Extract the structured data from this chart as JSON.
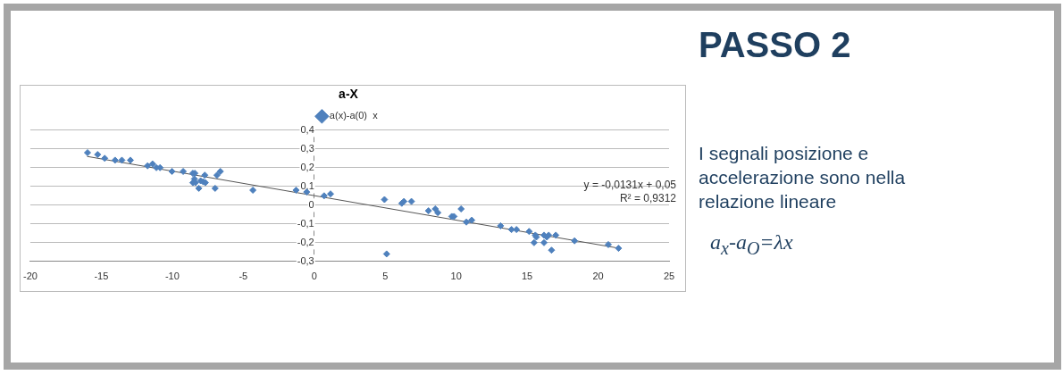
{
  "chart_data": {
    "type": "scatter",
    "title": "a-X",
    "series": [
      {
        "name": "a(x)-a(0)  x",
        "color": "#4f81bd",
        "marker": "diamond",
        "x": [
          -15.97,
          -15.26,
          -14.76,
          -14.03,
          -13.55,
          -12.95,
          -11.74,
          -11.39,
          -11.12,
          -10.86,
          -10.02,
          -9.23,
          -8.55,
          -8.41,
          -7.71,
          -6.61,
          -6.85,
          -8.44,
          -8.55,
          -8.37,
          -8.0,
          -7.82,
          -7.67,
          -8.13,
          -6.98,
          -4.32,
          -1.28,
          -0.53,
          0.7,
          1.15,
          4.95,
          6.17,
          6.32,
          6.85,
          8.05,
          8.53,
          8.71,
          9.69,
          9.85,
          10.35,
          10.72,
          11.1,
          13.13,
          13.9,
          14.25,
          15.14,
          15.58,
          15.65,
          15.49,
          16.19,
          16.39,
          16.52,
          17.02,
          16.19,
          16.72,
          18.34,
          20.72,
          21.44,
          5.1
        ],
        "values": [
          0.28,
          0.27,
          0.25,
          0.24,
          0.24,
          0.24,
          0.21,
          0.22,
          0.2,
          0.2,
          0.18,
          0.18,
          0.17,
          0.17,
          0.16,
          0.18,
          0.16,
          0.14,
          0.12,
          0.12,
          0.13,
          0.125,
          0.12,
          0.09,
          0.09,
          0.08,
          0.08,
          0.07,
          0.05,
          0.06,
          0.03,
          0.01,
          0.02,
          0.02,
          -0.03,
          -0.02,
          -0.04,
          -0.06,
          -0.06,
          -0.02,
          -0.09,
          -0.08,
          -0.11,
          -0.13,
          -0.13,
          -0.14,
          -0.16,
          -0.17,
          -0.2,
          -0.16,
          -0.17,
          -0.16,
          -0.16,
          -0.2,
          -0.24,
          -0.19,
          -0.21,
          -0.23,
          -0.26
        ]
      },
      {
        "type": "line",
        "color": "#555555",
        "marker": "none",
        "x": [
          -16,
          21.5
        ],
        "values": [
          0.26,
          -0.23
        ]
      }
    ],
    "xlim": [
      -20,
      25
    ],
    "xticks": [
      -20,
      -15,
      -10,
      -5,
      0,
      5,
      10,
      15,
      20,
      25
    ],
    "ylim": [
      -0.3,
      0.4
    ],
    "yticks": [
      {
        "value": -0.3,
        "label": "-0,3"
      },
      {
        "value": -0.2,
        "label": "-0,2"
      },
      {
        "value": -0.1,
        "label": "-0,1"
      },
      0,
      {
        "value": 0.1,
        "label": "0,1"
      },
      {
        "value": 0.2,
        "label": "0,2"
      },
      {
        "value": 0.3,
        "label": "0,3"
      },
      {
        "value": 0.4,
        "label": "0,4"
      }
    ],
    "grid": "y",
    "legend": "top",
    "annotations": [
      "y = -0,0131x + 0,05",
      "R² = 0,9312",
      "PASSO 2",
      "I segnali posizione e accelerazione sono nella relazione lineare",
      "a$_{x}$-a$_{O}$=λx"
    ]
  }
}
